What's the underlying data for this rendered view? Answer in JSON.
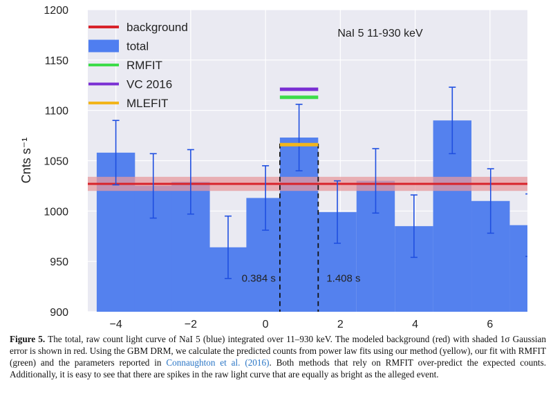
{
  "chart_data": {
    "type": "bar",
    "annotation": "NaI 5 11-930 keV",
    "ylabel": "Cnts s⁻¹",
    "xlabel": "",
    "xlim": [
      -4.75,
      7
    ],
    "ylim": [
      900,
      1200
    ],
    "xticks": [
      -4,
      -2,
      0,
      2,
      4,
      6
    ],
    "yticks": [
      900,
      950,
      1000,
      1050,
      1100,
      1150,
      1200
    ],
    "xtick_labels": [
      "−4",
      "−2",
      "0",
      "2",
      "4",
      "6"
    ],
    "bin_width": 1.024,
    "bins": [
      {
        "x": -4.0,
        "value": 1058,
        "err": 32
      },
      {
        "x": -3.0,
        "value": 1025,
        "err": 32
      },
      {
        "x": -2.0,
        "value": 1029,
        "err": 32
      },
      {
        "x": -1.0,
        "value": 964,
        "err": 31
      },
      {
        "x": 0.0,
        "value": 1013,
        "err": 32
      },
      {
        "x": 0.896,
        "value": 1073,
        "err": 33
      },
      {
        "x": 1.92,
        "value": 999,
        "err": 31
      },
      {
        "x": 2.944,
        "value": 1030,
        "err": 32
      },
      {
        "x": 3.968,
        "value": 985,
        "err": 31
      },
      {
        "x": 4.992,
        "value": 1090,
        "err": 33
      },
      {
        "x": 6.016,
        "value": 1010,
        "err": 32
      },
      {
        "x": 7.04,
        "value": 986,
        "err": 31
      }
    ],
    "background": {
      "value": 1027,
      "sigma": 7
    },
    "model_predictions": [
      {
        "name": "VC 2016",
        "value": 1121,
        "color": "#7a2fd3"
      },
      {
        "name": "RMFIT",
        "value": 1113,
        "color": "#3ddc4a"
      },
      {
        "name": "MLEFIT",
        "value": 1066,
        "color": "#f2b51c"
      }
    ],
    "interval_markers": [
      {
        "x": 0.384,
        "label": "0.384 s"
      },
      {
        "x": 1.408,
        "label": "1.408 s"
      }
    ],
    "legend": [
      {
        "label": "background",
        "color": "#d8232a",
        "kind": "line"
      },
      {
        "label": "total",
        "color": "#4f7ef0",
        "kind": "patch"
      },
      {
        "label": "RMFIT",
        "color": "#3ddc4a",
        "kind": "line"
      },
      {
        "label": "VC 2016",
        "color": "#7a2fd3",
        "kind": "line"
      },
      {
        "label": "MLEFIT",
        "color": "#f2b51c",
        "kind": "line"
      }
    ],
    "legend_position": "top-left",
    "grid": true,
    "colors": {
      "bars": "#5481ee",
      "errorbars": "#1f4fe0",
      "axes_bg": "#eaeaf2",
      "grid": "#ffffff",
      "background_band": "#e79a9e"
    }
  },
  "caption": {
    "label": "Figure 5.",
    "text_before_cite": "The total, raw count light curve of NaI 5 (blue) integrated over 11–930 keV. The modeled background (red) with shaded 1σ Gaussian error is shown in red. Using the GBM DRM, we calculate the predicted counts from power law fits using our method (yellow), our fit with RMFIT (green) and the parameters reported in",
    "cite": "Connaughton et al. (2016)",
    "text_after_cite": ". Both methods that rely on RMFIT over-predict the expected counts. Additionally, it is easy to see that there are spikes in the raw light curve that are equally as bright as the alleged event."
  }
}
